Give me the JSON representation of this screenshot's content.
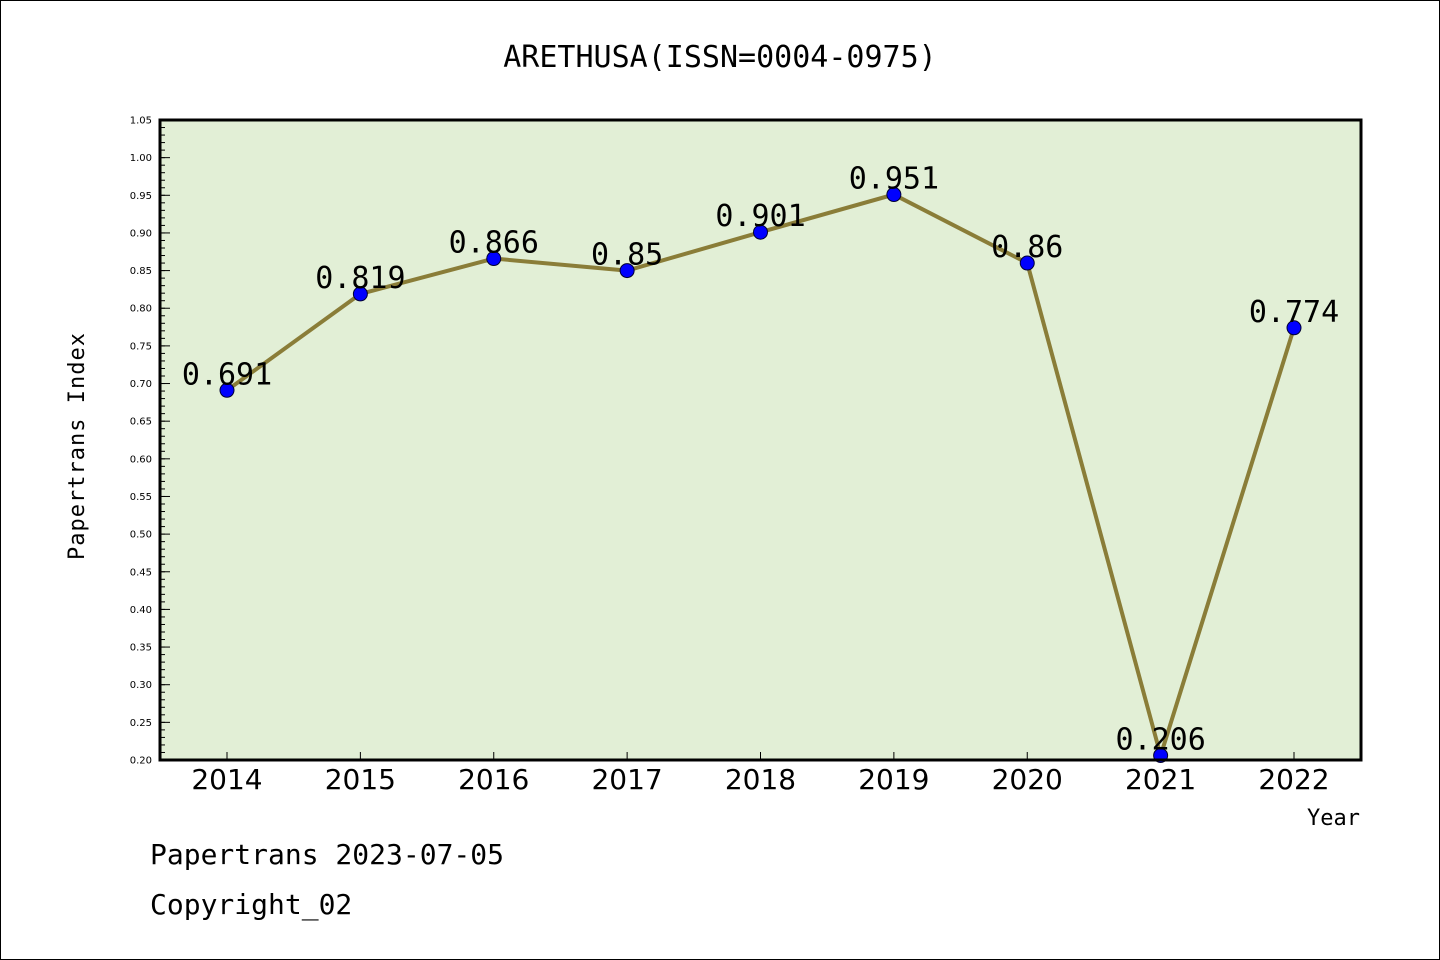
{
  "chart_data": {
    "type": "line",
    "title": "ARETHUSA(ISSN=0004-0975)",
    "xlabel": "Year",
    "ylabel": "Papertrans Index",
    "categories": [
      "2014",
      "2015",
      "2016",
      "2017",
      "2018",
      "2019",
      "2020",
      "2021",
      "2022"
    ],
    "series": [
      {
        "values": [
          0.691,
          0.819,
          0.866,
          0.85,
          0.901,
          0.951,
          0.86,
          0.206,
          0.774
        ],
        "labels": [
          "0.691",
          "0.819",
          "0.866",
          "0.85",
          "0.901",
          "0.951",
          "0.86",
          "0.206",
          "0.774"
        ]
      }
    ],
    "ylim": [
      0.2,
      1.05
    ],
    "yticks": [
      "0.20",
      "0.25",
      "0.30",
      "0.35",
      "0.40",
      "0.45",
      "0.50",
      "0.55",
      "0.60",
      "0.65",
      "0.70",
      "0.75",
      "0.80",
      "0.85",
      "0.90",
      "0.95",
      "1.00",
      "1.05"
    ],
    "grid": false,
    "colors": {
      "plot_background": "#e2efd6",
      "line": "#8a7d38",
      "marker": "#0000ff"
    }
  },
  "footer": {
    "line1": "Papertrans 2023-07-05",
    "line2": "Copyright_02"
  }
}
